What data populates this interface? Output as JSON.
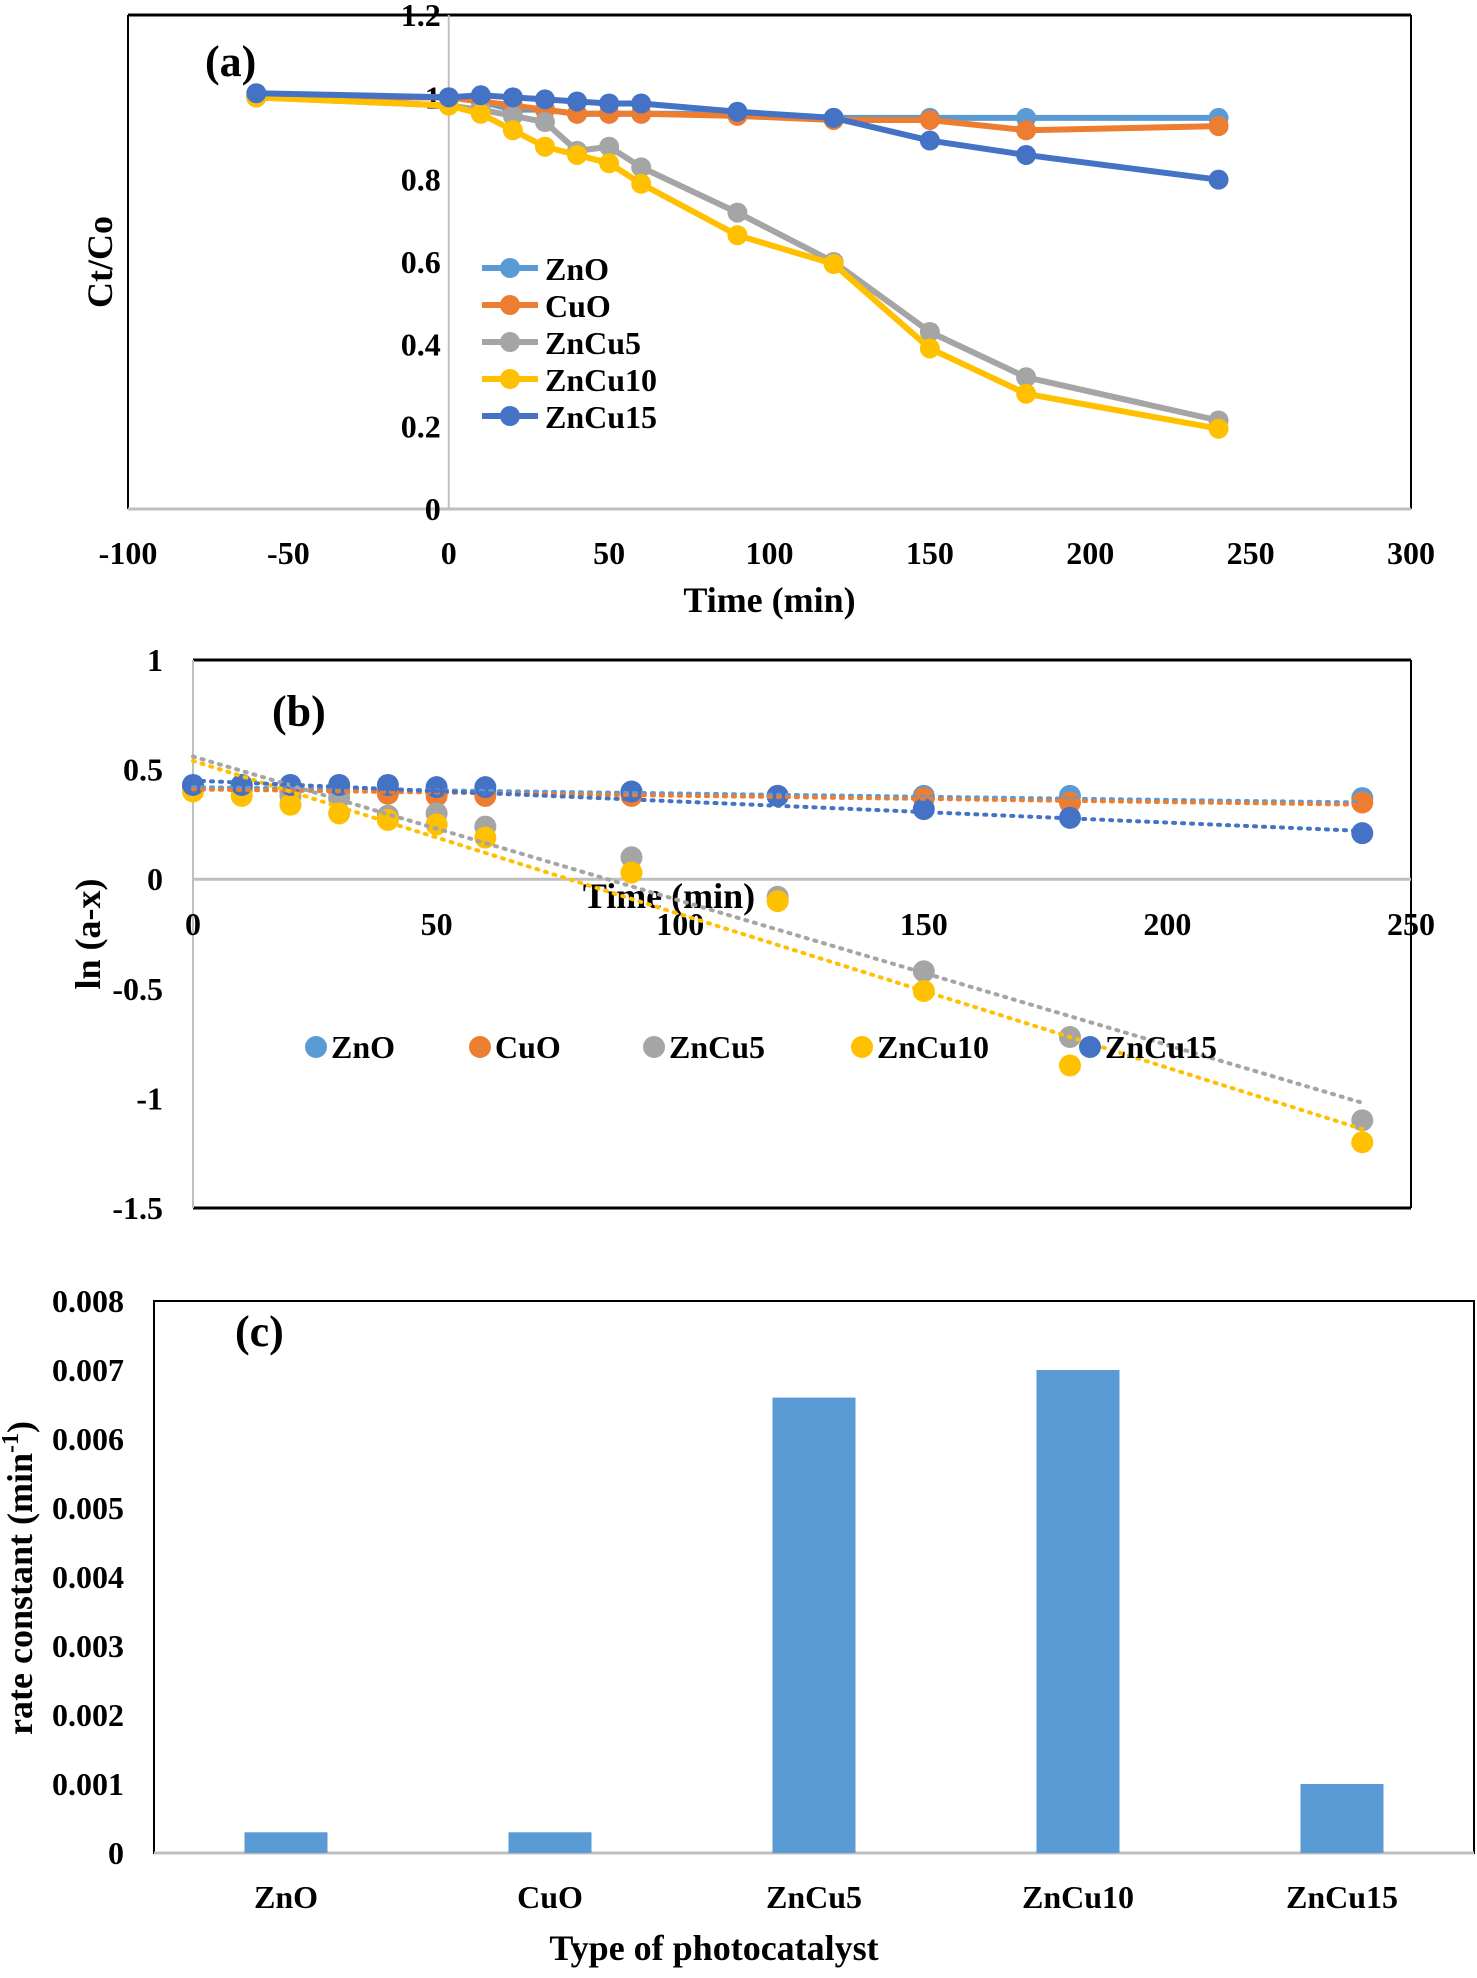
{
  "chart_data": [
    {
      "type": "line",
      "panel_label": "(a)",
      "xlabel": "Time (min)",
      "ylabel": "Ct/Co",
      "xlim": [
        -100,
        300
      ],
      "ylim": [
        0,
        1.2
      ],
      "xticks": [
        "-100",
        "-50",
        "0",
        "50",
        "100",
        "150",
        "200",
        "250",
        "300"
      ],
      "yticks": [
        "0",
        "0.2",
        "0.4",
        "0.6",
        "0.8",
        "1",
        "1.2"
      ],
      "legend": "inside-left",
      "x": [
        -60,
        0,
        10,
        20,
        30,
        40,
        50,
        60,
        90,
        120,
        150,
        180,
        240
      ],
      "series": [
        {
          "name": "ZnO",
          "color": "#5B9BD5",
          "values": [
            1.0,
            1.0,
            0.99,
            0.97,
            0.97,
            0.96,
            0.96,
            0.96,
            0.96,
            0.95,
            0.95,
            0.95,
            0.95
          ]
        },
        {
          "name": "CuO",
          "color": "#ED7D31",
          "values": [
            1.0,
            1.0,
            0.99,
            0.98,
            0.97,
            0.96,
            0.96,
            0.96,
            0.955,
            0.945,
            0.945,
            0.92,
            0.93
          ]
        },
        {
          "name": "ZnCu5",
          "color": "#A5A5A5",
          "values": [
            1.0,
            0.98,
            0.97,
            0.955,
            0.94,
            0.87,
            0.88,
            0.83,
            0.72,
            0.6,
            0.43,
            0.32,
            0.215
          ]
        },
        {
          "name": "ZnCu10",
          "color": "#FFC000",
          "values": [
            1.0,
            0.98,
            0.96,
            0.92,
            0.88,
            0.86,
            0.84,
            0.79,
            0.665,
            0.595,
            0.39,
            0.28,
            0.195
          ]
        },
        {
          "name": "ZnCu15",
          "color": "#4472C4",
          "values": [
            1.01,
            1.0,
            1.005,
            1.0,
            0.995,
            0.99,
            0.985,
            0.985,
            0.965,
            0.95,
            0.895,
            0.86,
            0.8
          ]
        }
      ]
    },
    {
      "type": "scatter",
      "panel_label": "(b)",
      "xlabel": "Time (min)",
      "ylabel": "ln (a-x)",
      "xlim": [
        0,
        250
      ],
      "ylim": [
        -1.5,
        1
      ],
      "xticks": [
        "0",
        "50",
        "100",
        "150",
        "200",
        "250"
      ],
      "yticks": [
        "-1.5",
        "-1",
        "-0.5",
        "0",
        "0.5",
        "1"
      ],
      "legend": "bottom-inside",
      "trendlines": "linear, dotted",
      "x": [
        0,
        10,
        20,
        30,
        40,
        50,
        60,
        90,
        120,
        150,
        180,
        240
      ],
      "series": [
        {
          "name": "ZnO",
          "color": "#5B9BD5",
          "values": [
            0.42,
            0.42,
            0.41,
            0.4,
            0.4,
            0.4,
            0.4,
            0.39,
            0.38,
            0.38,
            0.38,
            0.37
          ],
          "trend": [
            0.42,
            0.35
          ]
        },
        {
          "name": "CuO",
          "color": "#ED7D31",
          "values": [
            0.41,
            0.41,
            0.4,
            0.4,
            0.39,
            0.38,
            0.38,
            0.38,
            0.38,
            0.37,
            0.35,
            0.35
          ],
          "trend": [
            0.41,
            0.34
          ]
        },
        {
          "name": "ZnCu5",
          "color": "#A5A5A5",
          "values": [
            0.41,
            0.42,
            0.38,
            0.37,
            0.29,
            0.3,
            0.24,
            0.1,
            -0.08,
            -0.42,
            -0.72,
            -1.1
          ],
          "trend": [
            0.56,
            -1.02
          ]
        },
        {
          "name": "ZnCu10",
          "color": "#FFC000",
          "values": [
            0.4,
            0.38,
            0.34,
            0.3,
            0.27,
            0.25,
            0.19,
            0.03,
            -0.1,
            -0.51,
            -0.85,
            -1.2
          ],
          "trend": [
            0.54,
            -1.14
          ]
        },
        {
          "name": "ZnCu15",
          "color": "#4472C4",
          "values": [
            0.43,
            0.43,
            0.43,
            0.43,
            0.43,
            0.42,
            0.42,
            0.4,
            0.38,
            0.32,
            0.28,
            0.21
          ],
          "trend": [
            0.45,
            0.22
          ]
        }
      ]
    },
    {
      "type": "bar",
      "panel_label": "(c)",
      "xlabel": "Type of photocatalyst",
      "ylabel": "rate constant (min",
      "ylabel_sup": "-1",
      "ylabel_end": ")",
      "ylim": [
        0,
        0.008
      ],
      "yticks": [
        "0",
        "0.001",
        "0.002",
        "0.003",
        "0.004",
        "0.005",
        "0.006",
        "0.007",
        "0.008"
      ],
      "categories": [
        "ZnO",
        "CuO",
        "ZnCu5",
        "ZnCu10",
        "ZnCu15"
      ],
      "values": [
        0.0003,
        0.0003,
        0.0066,
        0.007,
        0.001
      ],
      "color": "#5B9BD5"
    }
  ]
}
